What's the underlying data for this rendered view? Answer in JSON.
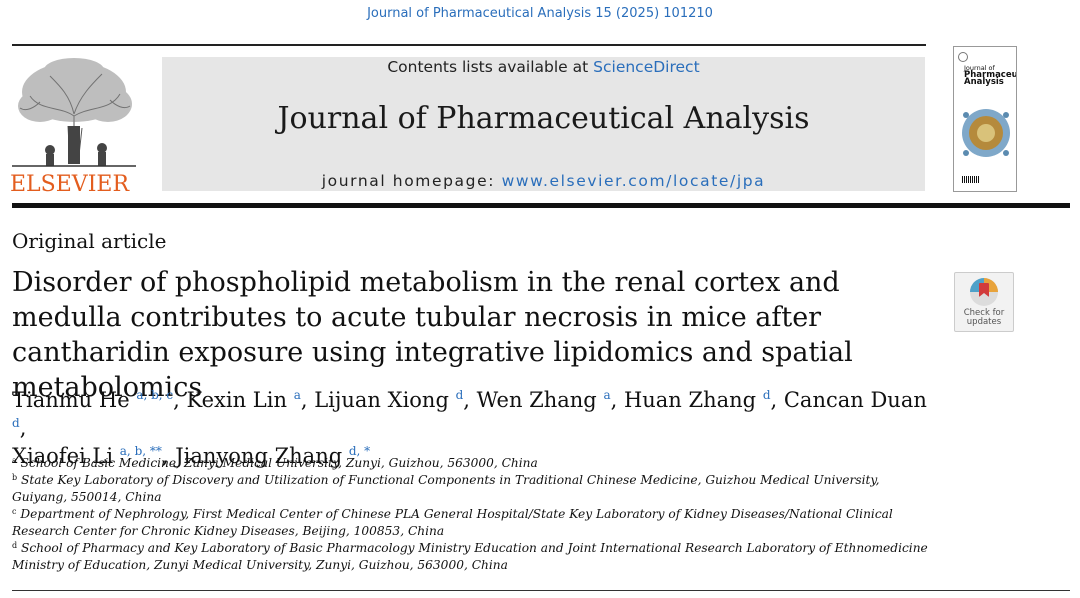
{
  "running_head": "Journal of Pharmaceutical Analysis 15 (2025) 101210",
  "publisher": {
    "logo_text": "ELSEVIER"
  },
  "banner": {
    "contents_prefix": "Contents lists available at ",
    "contents_link": "ScienceDirect",
    "journal_title": "Journal of Pharmaceutical Analysis",
    "homepage_prefix": "journal homepage: ",
    "homepage_link": "www.elsevier.com/locate/jpa"
  },
  "cover": {
    "line1": "Journal of",
    "line2": "Pharmaceutical",
    "line3": "Analysis"
  },
  "check_updates": {
    "line1": "Check for",
    "line2": "updates"
  },
  "article": {
    "type": "Original article",
    "title": "Disorder of phospholipid metabolism in the renal cortex and medulla contributes to acute tubular necrosis in mice after cantharidin exposure using integrative lipidomics and spatial metabolomics"
  },
  "authors": [
    {
      "name": "Tianmu He",
      "sup": "a, b, c"
    },
    {
      "name": "Kexin Lin",
      "sup": "a"
    },
    {
      "name": "Lijuan Xiong",
      "sup": "d"
    },
    {
      "name": "Wen Zhang",
      "sup": "a"
    },
    {
      "name": "Huan Zhang",
      "sup": "d"
    },
    {
      "name": "Cancan Duan",
      "sup": "d"
    },
    {
      "name": "Xiaofei Li",
      "sup": "a, b, **"
    },
    {
      "name": "Jianyong Zhang",
      "sup": "d, *"
    }
  ],
  "affiliations": [
    {
      "key": "a",
      "text": "School of Basic Medicine, Zunyi Medical University, Zunyi, Guizhou, 563000, China"
    },
    {
      "key": "b",
      "text": "State Key Laboratory of Discovery and Utilization of Functional Components in Traditional Chinese Medicine, Guizhou Medical University, Guiyang, 550014, China"
    },
    {
      "key": "c",
      "text": "Department of Nephrology, First Medical Center of Chinese PLA General Hospital/State Key Laboratory of Kidney Diseases/National Clinical Research Center for Chronic Kidney Diseases, Beijing, 100853, China"
    },
    {
      "key": "d",
      "text": "School of Pharmacy and Key Laboratory of Basic Pharmacology Ministry Education and Joint International Research Laboratory of Ethnomedicine Ministry of Education, Zunyi Medical University, Zunyi, Guizhou, 563000, China"
    }
  ],
  "colors": {
    "link": "#2a6ebb",
    "elsevier_orange": "#e35d1e",
    "banner_gray": "#e6e6e6"
  }
}
